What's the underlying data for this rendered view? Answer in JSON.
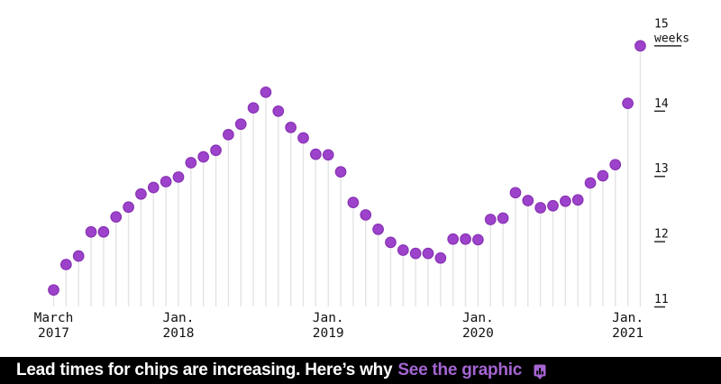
{
  "chart_data": {
    "type": "lollipop",
    "title": "",
    "xlabel": "",
    "ylabel": "weeks",
    "ylim": [
      11,
      15
    ],
    "grid": false,
    "legend": "none",
    "y_axis_side": "right",
    "y_ticks": [
      11,
      12,
      13,
      14,
      15
    ],
    "y_unit_label": "weeks",
    "x_tick_labels": [
      {
        "line1": "March",
        "line2": "2017",
        "index": 0
      },
      {
        "line1": "Jan.",
        "line2": "2018",
        "index": 10
      },
      {
        "line1": "Jan.",
        "line2": "2019",
        "index": 22
      },
      {
        "line1": "Jan.",
        "line2": "2020",
        "index": 34
      },
      {
        "line1": "Jan.",
        "line2": "2021",
        "index": 46
      }
    ],
    "points": [
      {
        "month": "2017-03",
        "weeks": 11.26
      },
      {
        "month": "2017-04",
        "weeks": 11.65
      },
      {
        "month": "2017-05",
        "weeks": 11.78
      },
      {
        "month": "2017-06",
        "weeks": 12.15
      },
      {
        "month": "2017-07",
        "weeks": 12.15
      },
      {
        "month": "2017-08",
        "weeks": 12.38
      },
      {
        "month": "2017-09",
        "weeks": 12.53
      },
      {
        "month": "2017-10",
        "weeks": 12.73
      },
      {
        "month": "2017-11",
        "weeks": 12.83
      },
      {
        "month": "2017-12",
        "weeks": 12.92
      },
      {
        "month": "2018-01",
        "weeks": 12.99
      },
      {
        "month": "2018-02",
        "weeks": 13.21
      },
      {
        "month": "2018-03",
        "weeks": 13.3
      },
      {
        "month": "2018-04",
        "weeks": 13.4
      },
      {
        "month": "2018-05",
        "weeks": 13.64
      },
      {
        "month": "2018-06",
        "weeks": 13.8
      },
      {
        "month": "2018-07",
        "weeks": 14.05
      },
      {
        "month": "2018-08",
        "weeks": 14.29
      },
      {
        "month": "2018-09",
        "weeks": 14.0
      },
      {
        "month": "2018-10",
        "weeks": 13.75
      },
      {
        "month": "2018-11",
        "weeks": 13.59
      },
      {
        "month": "2018-12",
        "weeks": 13.34
      },
      {
        "month": "2019-01",
        "weeks": 13.33
      },
      {
        "month": "2019-02",
        "weeks": 13.07
      },
      {
        "month": "2019-03",
        "weeks": 12.6
      },
      {
        "month": "2019-04",
        "weeks": 12.41
      },
      {
        "month": "2019-05",
        "weeks": 12.19
      },
      {
        "month": "2019-06",
        "weeks": 11.99
      },
      {
        "month": "2019-07",
        "weeks": 11.87
      },
      {
        "month": "2019-08",
        "weeks": 11.82
      },
      {
        "month": "2019-09",
        "weeks": 11.82
      },
      {
        "month": "2019-10",
        "weeks": 11.75
      },
      {
        "month": "2019-11",
        "weeks": 12.04
      },
      {
        "month": "2019-12",
        "weeks": 12.04
      },
      {
        "month": "2020-01",
        "weeks": 12.03
      },
      {
        "month": "2020-02",
        "weeks": 12.34
      },
      {
        "month": "2020-03",
        "weeks": 12.36
      },
      {
        "month": "2020-04",
        "weeks": 12.75
      },
      {
        "month": "2020-05",
        "weeks": 12.63
      },
      {
        "month": "2020-06",
        "weeks": 12.52
      },
      {
        "month": "2020-07",
        "weeks": 12.55
      },
      {
        "month": "2020-08",
        "weeks": 12.62
      },
      {
        "month": "2020-09",
        "weeks": 12.64
      },
      {
        "month": "2020-10",
        "weeks": 12.9
      },
      {
        "month": "2020-11",
        "weeks": 13.01
      },
      {
        "month": "2020-12",
        "weeks": 13.18
      },
      {
        "month": "2021-01",
        "weeks": 14.12
      },
      {
        "month": "2021-02",
        "weeks": 15.0
      }
    ]
  },
  "colors": {
    "dot_fill": "#9d42cb",
    "dot_edge": "#8631b2",
    "stem": "#e4e4e4",
    "axis_text": "#111111",
    "tick_line": "#2b2b2b",
    "footer_bg": "#000000",
    "headline_text": "#ffffff",
    "link_purple": "#a465d2",
    "icon_bars": "#0a0a0a"
  },
  "footer": {
    "headline": "Lead times for chips are increasing. Here’s why",
    "link_label": "See the graphic",
    "icon": "bar-chart-bubble-icon"
  }
}
